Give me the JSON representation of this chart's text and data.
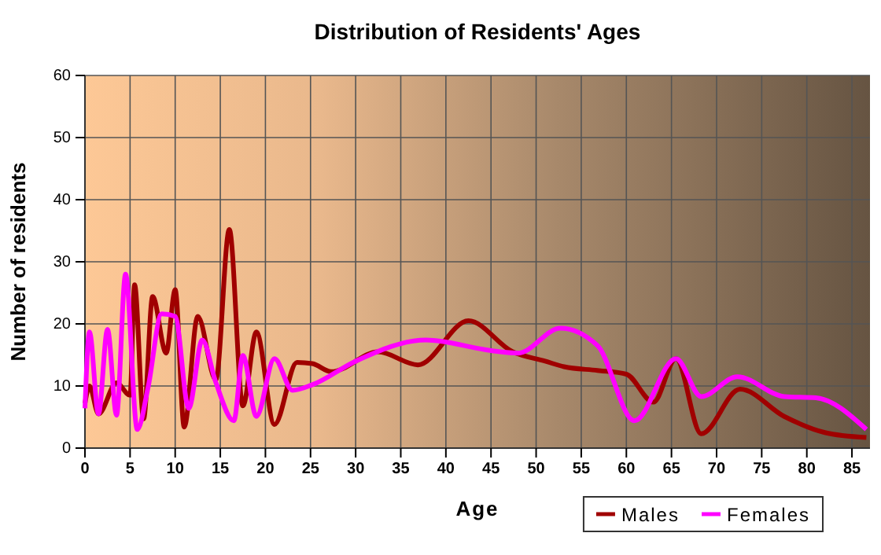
{
  "chart_data": {
    "type": "line",
    "title": "Distribution of Residents' Ages",
    "xlabel": "Age",
    "ylabel": "Number of residents",
    "xlim": [
      0,
      87
    ],
    "xticks": [
      0,
      5,
      10,
      15,
      20,
      25,
      30,
      35,
      40,
      45,
      50,
      55,
      60,
      65,
      70,
      75,
      80,
      85
    ],
    "ylim": [
      0,
      60
    ],
    "yticks": [
      0,
      10,
      20,
      30,
      40,
      50,
      60
    ],
    "grid": true,
    "legend": "bottom right",
    "marker": "none",
    "line_style": "solid",
    "series": [
      {
        "name": "Males",
        "color": "#a00000",
        "x": [
          0,
          0.5,
          1.5,
          3.5,
          5,
          5.5,
          6.5,
          7.5,
          9,
          10,
          11,
          12.5,
          14.5,
          16,
          17.5,
          19,
          21,
          23.5,
          25.2,
          27.3,
          32.5,
          36.9,
          42.5,
          47.4,
          51,
          53.1,
          56.8,
          60,
          63,
          65.5,
          68.3,
          72.6,
          77.5,
          82,
          86.6
        ],
        "values": [
          7.2,
          10,
          5.5,
          10.5,
          8.5,
          26.3,
          4.7,
          24.4,
          15.3,
          25.5,
          3.4,
          21.2,
          11,
          35.2,
          6.8,
          18.7,
          3.8,
          13.8,
          13.6,
          12.3,
          15.5,
          13.4,
          20.5,
          15.5,
          14,
          13.1,
          12.5,
          11.9,
          7.4,
          14.4,
          2.3,
          9.5,
          5.1,
          2.5,
          1.7
        ]
      },
      {
        "name": "Females",
        "color": "#ff00ff",
        "x": [
          0,
          0.5,
          1.5,
          2.5,
          3.5,
          4.5,
          5.8,
          7,
          8.5,
          10,
          11.5,
          13,
          14.5,
          16.5,
          17.5,
          19,
          21,
          23,
          25.2,
          30,
          37.8,
          45,
          48,
          52.7,
          56.8,
          60.9,
          65.5,
          68.3,
          72.3,
          77.5,
          81,
          86.6
        ],
        "values": [
          6.4,
          18.7,
          5.5,
          19.1,
          5.3,
          28,
          3,
          9.8,
          21.6,
          21.2,
          6.4,
          17.4,
          10.6,
          4.4,
          14.9,
          5.1,
          14.4,
          9.3,
          10.2,
          14,
          17.4,
          15.7,
          15.3,
          19.3,
          16.5,
          4.4,
          14.4,
          8.3,
          11.5,
          8.3,
          8.1,
          3
        ]
      }
    ]
  }
}
